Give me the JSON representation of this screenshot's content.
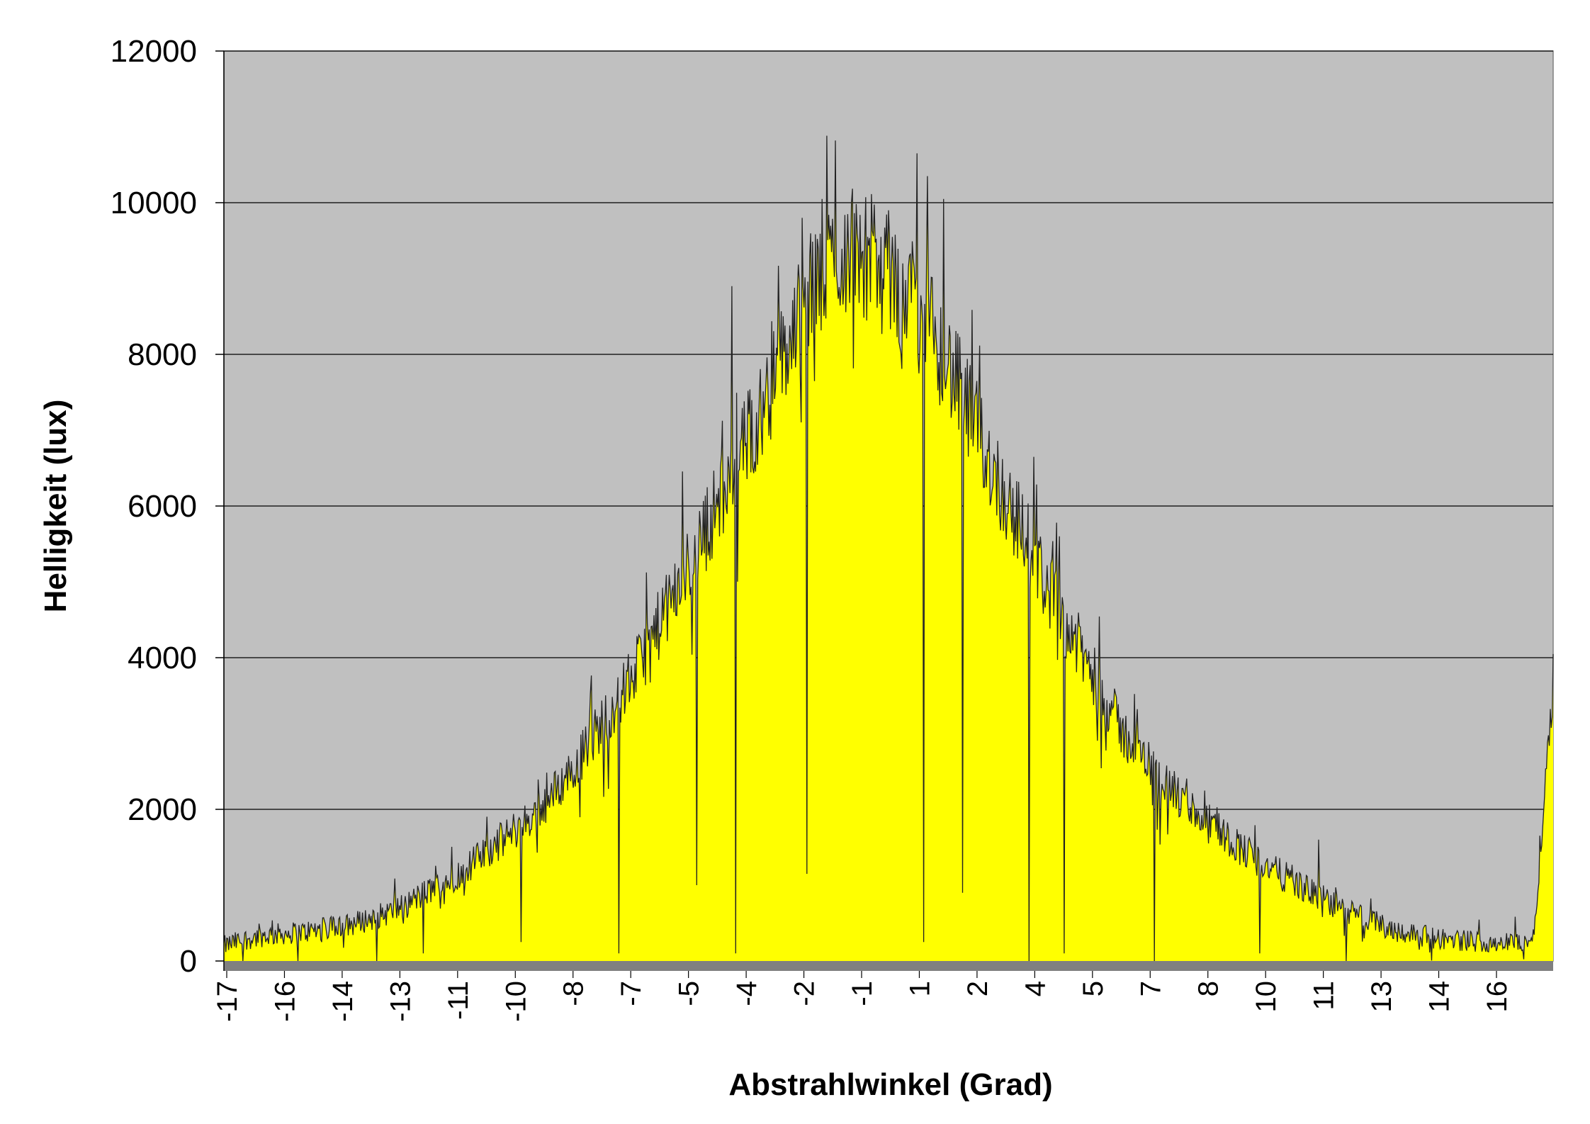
{
  "chart_data": {
    "type": "area",
    "title": "",
    "xlabel": "Abstrahlwinkel (Grad)",
    "ylabel": "Helligkeit (lux)",
    "ylim": [
      0,
      12000
    ],
    "yticks": [
      "0",
      "2000",
      "4000",
      "6000",
      "8000",
      "10000",
      "12000"
    ],
    "xlim": [
      -17,
      17
    ],
    "xtick_labels": [
      "-17",
      "-16",
      "-14",
      "-13",
      "-11",
      "-10",
      "-8",
      "-7",
      "-5",
      "-4",
      "-2",
      "-1",
      "1",
      "2",
      "4",
      "5",
      "7",
      "8",
      "10",
      "11",
      "13",
      "14",
      "16"
    ],
    "grid": "horizontal",
    "legend": "none",
    "colors": {
      "plot_bg": "#c0c0c0",
      "fill": "#ffff00",
      "line": "#222222",
      "grid": "#000000",
      "floor": "#808080"
    },
    "series": [
      {
        "x": [
          -17,
          -16.5,
          -16,
          -15.5,
          -15,
          -14.5,
          -14,
          -13.5,
          -13,
          -12.5,
          -12,
          -11.5,
          -11,
          -10.5,
          -10,
          -9.5,
          -9,
          -8.5,
          -8,
          -7.5,
          -7,
          -6.5,
          -6,
          -5.5,
          -5,
          -4.5,
          -4,
          -3.5,
          -3,
          -2.5,
          -2,
          -1.5,
          -1,
          -0.5,
          0,
          0.5,
          1,
          1.5,
          2,
          2.5,
          3,
          3.5,
          4,
          4.5,
          5,
          5.5,
          6,
          6.5,
          7,
          7.5,
          8,
          8.5,
          9,
          9.5,
          10,
          10.5,
          11,
          11.5,
          12,
          12.5,
          13,
          13.5,
          14,
          14.5,
          15,
          15.5,
          16,
          16.5,
          17
        ],
        "values": [
          200,
          280,
          330,
          360,
          380,
          420,
          450,
          520,
          600,
          700,
          850,
          1000,
          1150,
          1350,
          1550,
          1750,
          1950,
          2250,
          2600,
          3000,
          3400,
          3800,
          4300,
          4800,
          5300,
          5900,
          6400,
          7000,
          7600,
          8200,
          8800,
          9200,
          9400,
          9300,
          9000,
          8700,
          8400,
          7900,
          7300,
          6700,
          6100,
          5600,
          5000,
          4500,
          4000,
          3500,
          3000,
          2700,
          2400,
          2100,
          1900,
          1700,
          1500,
          1300,
          1150,
          1000,
          850,
          700,
          600,
          500,
          400,
          350,
          300,
          280,
          260,
          250,
          240,
          300,
          3800
        ]
      }
    ],
    "dropouts": [
      {
        "x": -15.1,
        "y": 0
      },
      {
        "x": -13.1,
        "y": 0
      },
      {
        "x": -11.9,
        "y": 100
      },
      {
        "x": -9.4,
        "y": 250
      },
      {
        "x": -6.9,
        "y": 100
      },
      {
        "x": -4.9,
        "y": 1000
      },
      {
        "x": -3.9,
        "y": 100
      },
      {
        "x": -2.1,
        "y": 1150
      },
      {
        "x": 0.9,
        "y": 250
      },
      {
        "x": 1.9,
        "y": 900
      },
      {
        "x": 3.6,
        "y": 0
      },
      {
        "x": 4.5,
        "y": 100
      },
      {
        "x": 6.8,
        "y": 0
      },
      {
        "x": 9.5,
        "y": 100
      },
      {
        "x": 11.7,
        "y": 0
      }
    ],
    "spikes": [
      {
        "x": -4.0,
        "y": 8900
      },
      {
        "x": -2.2,
        "y": 9800
      },
      {
        "x": 0.0,
        "y": 9900
      },
      {
        "x": 1.0,
        "y": 10350
      },
      {
        "x": 1.2,
        "y": 8500
      },
      {
        "x": 11.0,
        "y": 1600
      }
    ]
  }
}
